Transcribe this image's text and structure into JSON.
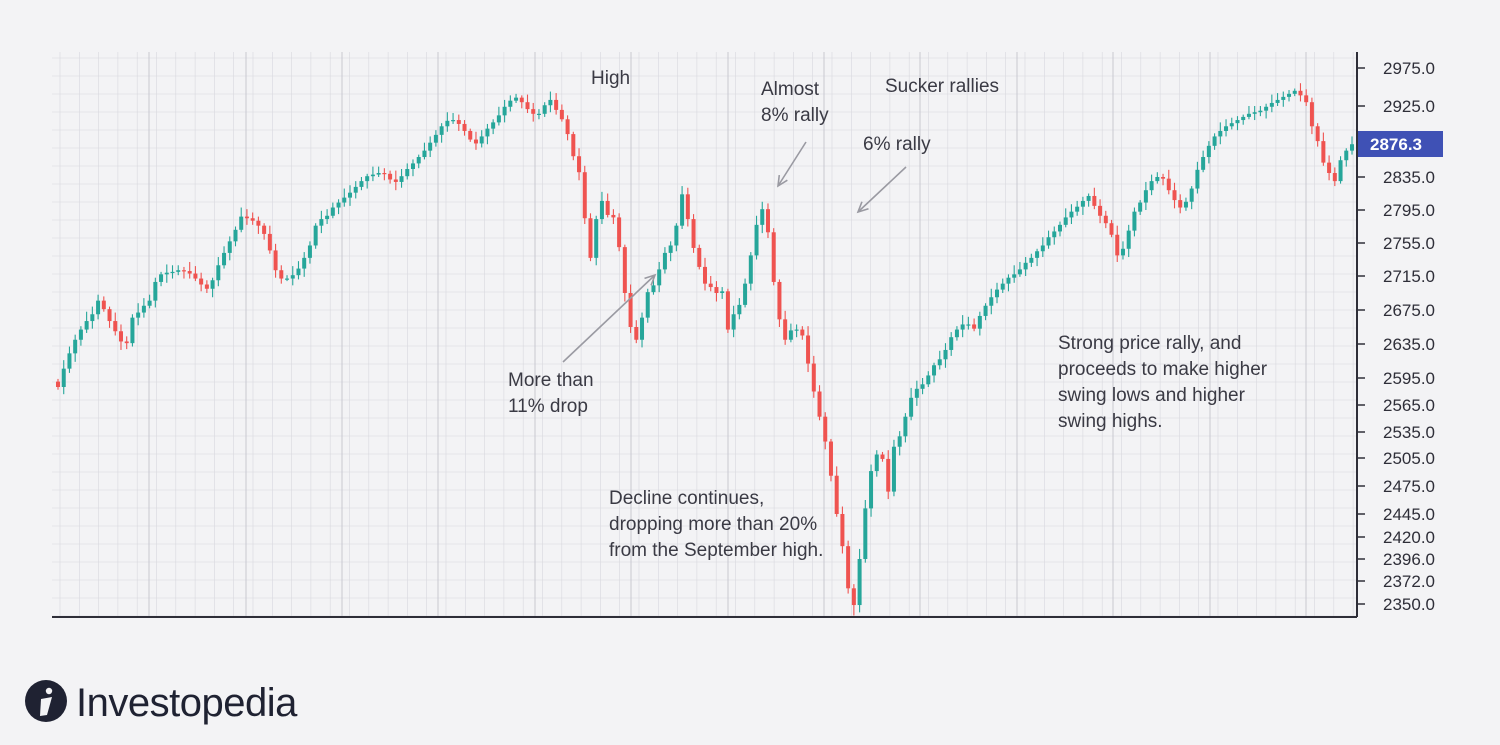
{
  "brand": {
    "name": "Investopedia",
    "logo_icon": "investopedia-logo-icon"
  },
  "colors": {
    "up": "#26a69a",
    "down": "#ef5350",
    "price_tag_bg": "#3f51b5",
    "grid": "#d8d8de",
    "axis": "#2e2e38",
    "arrow": "#9a9aa2"
  },
  "annotations": {
    "high": "High",
    "almost_rally": "Almost\n8% rally",
    "sucker_rallies": "Sucker rallies",
    "rally_6": "6% rally",
    "more_than_drop": "More than\n11% drop",
    "decline": "Decline continues,\ndropping more than 20%\nfrom the September high.",
    "strong_rally": "Strong price rally, and\nproceeds to make higher\nswing lows and higher\nswing highs."
  },
  "chart_data": {
    "type": "candlestick",
    "y_axis_labels": [
      "2975.0",
      "2925.0",
      "2876.3",
      "2835.0",
      "2795.0",
      "2755.0",
      "2715.0",
      "2675.0",
      "2635.0",
      "2595.0",
      "2565.0",
      "2535.0",
      "2505.0",
      "2475.0",
      "2445.0",
      "2420.0",
      "2396.0",
      "2372.0",
      "2350.0"
    ],
    "current_price": "2876.3",
    "grid": true,
    "closes": [
      2585,
      2606,
      2624,
      2640,
      2652,
      2662,
      2670,
      2686,
      2676,
      2662,
      2650,
      2638,
      2636,
      2666,
      2672,
      2680,
      2686,
      2708,
      2717,
      2719,
      2720,
      2722,
      2721,
      2718,
      2712,
      2705,
      2700,
      2710,
      2728,
      2743,
      2757,
      2771,
      2787,
      2785,
      2782,
      2776,
      2766,
      2746,
      2722,
      2712,
      2712,
      2716,
      2724,
      2737,
      2752,
      2776,
      2784,
      2788,
      2798,
      2804,
      2810,
      2816,
      2823,
      2830,
      2836,
      2838,
      2840,
      2839,
      2832,
      2829,
      2836,
      2845,
      2852,
      2860,
      2868,
      2878,
      2888,
      2899,
      2906,
      2907,
      2902,
      2893,
      2882,
      2877,
      2886,
      2896,
      2904,
      2913,
      2924,
      2932,
      2936,
      2930,
      2921,
      2915,
      2915,
      2926,
      2933,
      2920,
      2908,
      2889,
      2861,
      2841,
      2785,
      2737,
      2784,
      2806,
      2789,
      2786,
      2750,
      2695,
      2655,
      2640,
      2666,
      2696,
      2704,
      2723,
      2743,
      2752,
      2776,
      2814,
      2784,
      2749,
      2726,
      2706,
      2702,
      2695,
      2697,
      2652,
      2670,
      2681,
      2706,
      2740,
      2777,
      2796,
      2768,
      2708,
      2664,
      2640,
      2651,
      2652,
      2645,
      2612,
      2580,
      2552,
      2524,
      2486,
      2445,
      2410,
      2365,
      2349,
      2396,
      2451,
      2491,
      2509,
      2504,
      2469,
      2518,
      2530,
      2552,
      2573,
      2583,
      2588,
      2598,
      2610,
      2617,
      2628,
      2643,
      2652,
      2658,
      2658,
      2653,
      2668,
      2680,
      2690,
      2699,
      2706,
      2713,
      2717,
      2723,
      2731,
      2737,
      2745,
      2752,
      2762,
      2769,
      2777,
      2786,
      2793,
      2799,
      2806,
      2812,
      2800,
      2788,
      2779,
      2765,
      2740,
      2748,
      2770,
      2793,
      2804,
      2819,
      2830,
      2835,
      2833,
      2819,
      2807,
      2798,
      2805,
      2821,
      2844,
      2860,
      2874,
      2886,
      2893,
      2899,
      2903,
      2907,
      2911,
      2915,
      2917,
      2919,
      2924,
      2929,
      2933,
      2937,
      2941,
      2945,
      2939,
      2930,
      2899,
      2880,
      2853,
      2840,
      2830,
      2856,
      2868,
      2876
    ]
  }
}
